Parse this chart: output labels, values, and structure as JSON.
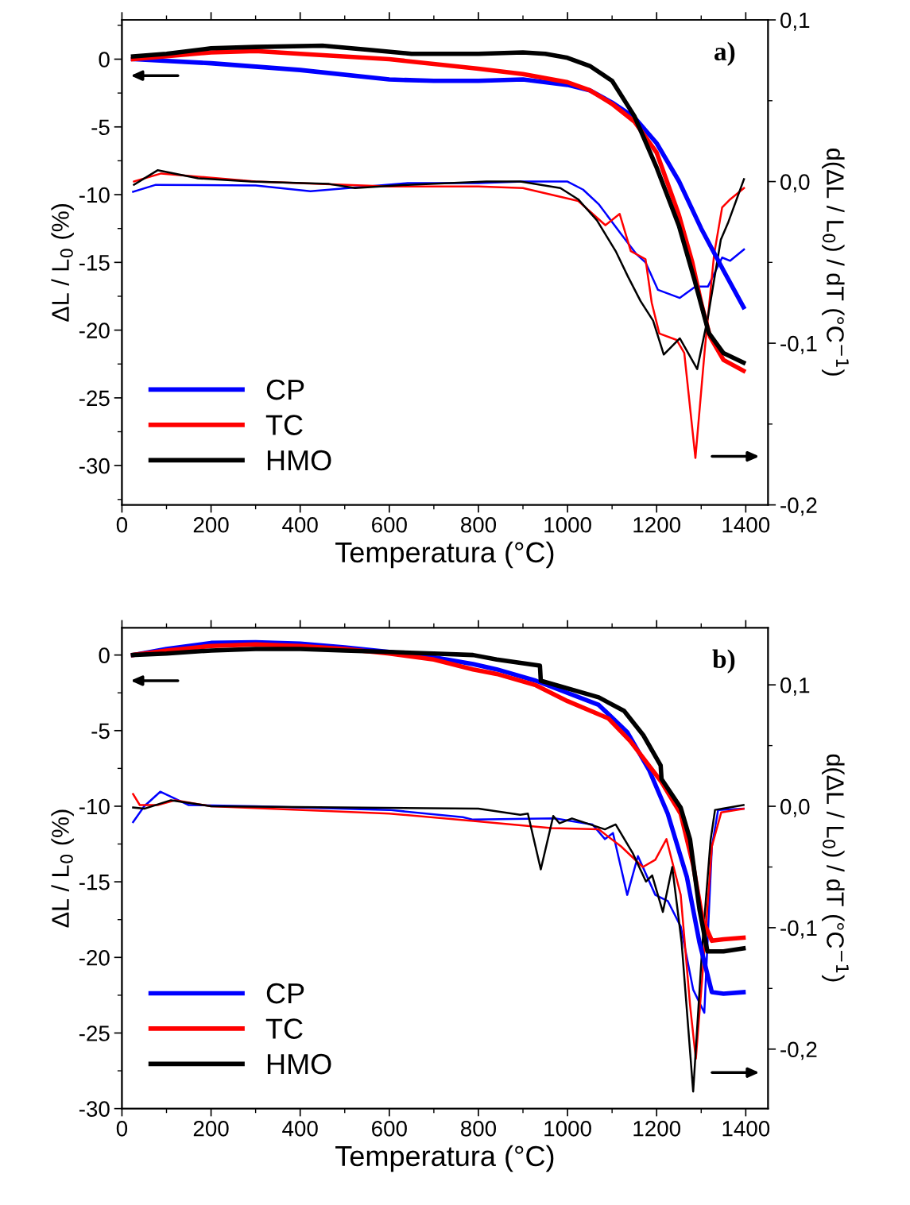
{
  "chart_data": [
    {
      "type": "line",
      "xlabel": "Temperatura (°C)",
      "ylabel": "ΔL / L$_{0}$ (%)",
      "y2label": "d(ΔL / L$_{0}$) / dT (°C$^{−1}$)",
      "annotations": [
        "a)"
      ],
      "legend": "bottom left",
      "grid": false,
      "xlim": [
        0,
        1450
      ],
      "xticks": [
        0,
        200,
        400,
        600,
        800,
        1000,
        1200,
        1400
      ],
      "ylim": [
        -32.9,
        2.9
      ],
      "yticks": [
        -30,
        -25,
        -20,
        -15,
        -10,
        -5,
        0
      ],
      "y2lim": [
        -0.2,
        0.1
      ],
      "y2ticks": [
        {
          "value": -0.2,
          "label": "-0,2"
        },
        {
          "value": -0.1,
          "label": "-0,1"
        },
        {
          "value": 0.0,
          "label": "0,0"
        },
        {
          "value": 0.1,
          "label": "0,1"
        }
      ],
      "series": [
        {
          "name": "CP",
          "color": "#0000ff",
          "x": [
            25,
            200,
            400,
            600,
            700,
            800,
            900,
            1000,
            1050,
            1100,
            1150,
            1200,
            1250,
            1300,
            1350,
            1395
          ],
          "values": [
            0,
            -0.3,
            -0.8,
            -1.5,
            -1.6,
            -1.6,
            -1.5,
            -1.9,
            -2.3,
            -3.2,
            -4.3,
            -6.2,
            -9.0,
            -12.5,
            -15.6,
            -18.3
          ]
        },
        {
          "name": "TC",
          "color": "#ff0000",
          "x": [
            25,
            200,
            300,
            400,
            600,
            800,
            900,
            1000,
            1050,
            1100,
            1150,
            1200,
            1250,
            1280,
            1300,
            1320,
            1350,
            1395
          ],
          "values": [
            0,
            0.5,
            0.6,
            0.4,
            0,
            -0.7,
            -1.1,
            -1.7,
            -2.3,
            -3.3,
            -4.6,
            -6.9,
            -11.5,
            -15,
            -18,
            -20.5,
            -22.2,
            -23.0
          ]
        },
        {
          "name": "HMO",
          "color": "#000000",
          "x": [
            25,
            100,
            200,
            300,
            450,
            550,
            650,
            800,
            900,
            950,
            1000,
            1050,
            1100,
            1150,
            1200,
            1250,
            1285,
            1317,
            1350,
            1395
          ],
          "values": [
            0.2,
            0.4,
            0.8,
            0.9,
            1.0,
            0.7,
            0.4,
            0.4,
            0.5,
            0.4,
            0.1,
            -0.5,
            -1.6,
            -4.2,
            -8.0,
            -12.3,
            -16.3,
            -20.2,
            -21.7,
            -22.4
          ]
        },
        {
          "axis": "y2",
          "color": "#0000ff",
          "x": [
            25,
            76,
            300,
            423,
            641,
            800,
            900,
            1000,
            1035,
            1070,
            1119,
            1155,
            1175,
            1203,
            1252,
            1287,
            1315,
            1347,
            1365,
            1396
          ],
          "values": [
            -0.0063,
            -0.002,
            -0.0024,
            -0.006,
            -0.001,
            -0.001,
            0.0,
            0.0,
            -0.005,
            -0.014,
            -0.032,
            -0.045,
            -0.05,
            -0.067,
            -0.072,
            -0.065,
            -0.065,
            -0.047,
            -0.049,
            -0.042
          ]
        },
        {
          "axis": "y2",
          "color": "#ff0000",
          "x": [
            27,
            88,
            300,
            600,
            800,
            900,
            1024,
            1085,
            1117,
            1142,
            1175,
            1189,
            1206,
            1245,
            1262,
            1287,
            1308,
            1329,
            1347,
            1365,
            1396
          ],
          "values": [
            0.0,
            0.005,
            0.0,
            -0.003,
            -0.003,
            -0.004,
            -0.012,
            -0.027,
            -0.02,
            -0.043,
            -0.048,
            -0.075,
            -0.094,
            -0.098,
            -0.106,
            -0.171,
            -0.104,
            -0.045,
            -0.016,
            -0.011,
            -0.004
          ]
        },
        {
          "axis": "y2",
          "color": "#000000",
          "x": [
            27,
            80,
            171,
            289,
            465,
            523,
            641,
            818,
            894,
            984,
            1024,
            1066,
            1108,
            1136,
            1164,
            1192,
            1216,
            1252,
            1291,
            1315,
            1344,
            1361,
            1396
          ],
          "values": [
            -0.002,
            0.007,
            0.002,
            0.0,
            -0.0015,
            -0.004,
            -0.002,
            0.0,
            0.0,
            -0.004,
            -0.011,
            -0.024,
            -0.043,
            -0.059,
            -0.074,
            -0.086,
            -0.107,
            -0.097,
            -0.116,
            -0.084,
            -0.036,
            -0.025,
            0.0015
          ]
        }
      ]
    },
    {
      "type": "line",
      "xlabel": "Temperatura (°C)",
      "ylabel": "ΔL / L$_{0}$ (%)",
      "y2label": "d(ΔL / L$_{0}$) / dT (°C$^{−1}$)",
      "annotations": [
        "b)"
      ],
      "legend": "bottom left",
      "grid": false,
      "xlim": [
        0,
        1450
      ],
      "xticks": [
        0,
        200,
        400,
        600,
        800,
        1000,
        1200,
        1400
      ],
      "ylim": [
        -30,
        1.8
      ],
      "yticks": [
        -30,
        -25,
        -20,
        -15,
        -10,
        -5,
        0
      ],
      "y2lim": [
        -0.249,
        0.147
      ],
      "y2ticks": [
        {
          "value": -0.2,
          "label": "-0,2"
        },
        {
          "value": -0.1,
          "label": "-0,1"
        },
        {
          "value": 0.0,
          "label": "0,0"
        },
        {
          "value": 0.1,
          "label": "0,1"
        }
      ],
      "series": [
        {
          "name": "CP",
          "color": "#0000ff",
          "x": [
            25,
            100,
            200,
            300,
            400,
            500,
            600,
            700,
            788,
            841,
            929,
            1070,
            1134,
            1183,
            1225,
            1268,
            1296,
            1324,
            1350,
            1395
          ],
          "values": [
            0,
            0.4,
            0.8,
            0.85,
            0.75,
            0.5,
            0.2,
            -0.15,
            -0.6,
            -0.95,
            -1.7,
            -3.3,
            -5.1,
            -7.6,
            -10.5,
            -14.7,
            -19.0,
            -22.3,
            -22.4,
            -22.3
          ]
        },
        {
          "name": "TC",
          "color": "#ff0000",
          "x": [
            25,
            100,
            200,
            300,
            400,
            500,
            600,
            700,
            788,
            841,
            929,
            1000,
            1092,
            1141,
            1211,
            1254,
            1282,
            1303,
            1324,
            1350,
            1395
          ],
          "values": [
            0,
            0.3,
            0.6,
            0.7,
            0.6,
            0.4,
            0.1,
            -0.3,
            -0.95,
            -1.25,
            -2.0,
            -3.05,
            -4.2,
            -5.7,
            -8.4,
            -10.5,
            -13.9,
            -17.5,
            -18.9,
            -18.8,
            -18.7
          ]
        },
        {
          "name": "HMO",
          "color": "#000000",
          "x": [
            25,
            100,
            200,
            300,
            400,
            500,
            600,
            700,
            788,
            841,
            938,
            940,
            1070,
            1127,
            1170,
            1209,
            1211,
            1254,
            1275,
            1296,
            1314,
            1350,
            1395
          ],
          "values": [
            0,
            0.1,
            0.3,
            0.4,
            0.4,
            0.3,
            0.2,
            0.1,
            0,
            -0.3,
            -0.7,
            -1.7,
            -2.8,
            -3.7,
            -5.3,
            -7.3,
            -8.2,
            -10.1,
            -12.2,
            -16.8,
            -19.6,
            -19.6,
            -19.4
          ]
        },
        {
          "axis": "y2",
          "color": "#0000ff",
          "x": [
            25,
            50,
            86,
            150,
            300,
            600,
            765,
            788,
            971,
            1056,
            1084,
            1102,
            1134,
            1158,
            1197,
            1225,
            1254,
            1282,
            1307,
            1324,
            1338,
            1395
          ],
          "values": [
            -0.013,
            0.0,
            0.012,
            0.001,
            0.0,
            -0.003,
            -0.009,
            -0.011,
            -0.01,
            -0.015,
            -0.027,
            -0.022,
            -0.073,
            -0.041,
            -0.073,
            -0.078,
            -0.099,
            -0.151,
            -0.17,
            -0.033,
            -0.003,
            -0.002
          ]
        },
        {
          "axis": "y2",
          "color": "#ff0000",
          "x": [
            25,
            40,
            80,
            120,
            200,
            600,
            788,
            964,
            1070,
            1120,
            1169,
            1197,
            1222,
            1254,
            1275,
            1288,
            1303,
            1324,
            1345,
            1395
          ],
          "values": [
            0.01,
            0.001,
            0.001,
            0.005,
            0.0,
            -0.006,
            -0.012,
            -0.018,
            -0.019,
            -0.033,
            -0.05,
            -0.044,
            -0.027,
            -0.073,
            -0.164,
            -0.208,
            -0.138,
            -0.033,
            -0.005,
            -0.002
          ]
        },
        {
          "axis": "y2",
          "color": "#000000",
          "x": [
            25,
            50,
            110,
            200,
            800,
            894,
            911,
            940,
            968,
            982,
            1010,
            1084,
            1108,
            1147,
            1176,
            1190,
            1214,
            1235,
            1256,
            1282,
            1303,
            1321,
            1331,
            1395
          ],
          "values": [
            -0.001,
            -0.002,
            0.005,
            0.0,
            -0.002,
            -0.007,
            -0.006,
            -0.052,
            -0.008,
            -0.014,
            -0.01,
            -0.019,
            -0.015,
            -0.039,
            -0.062,
            -0.057,
            -0.087,
            -0.05,
            -0.112,
            -0.235,
            -0.112,
            -0.028,
            -0.003,
            0.001
          ]
        }
      ]
    }
  ]
}
